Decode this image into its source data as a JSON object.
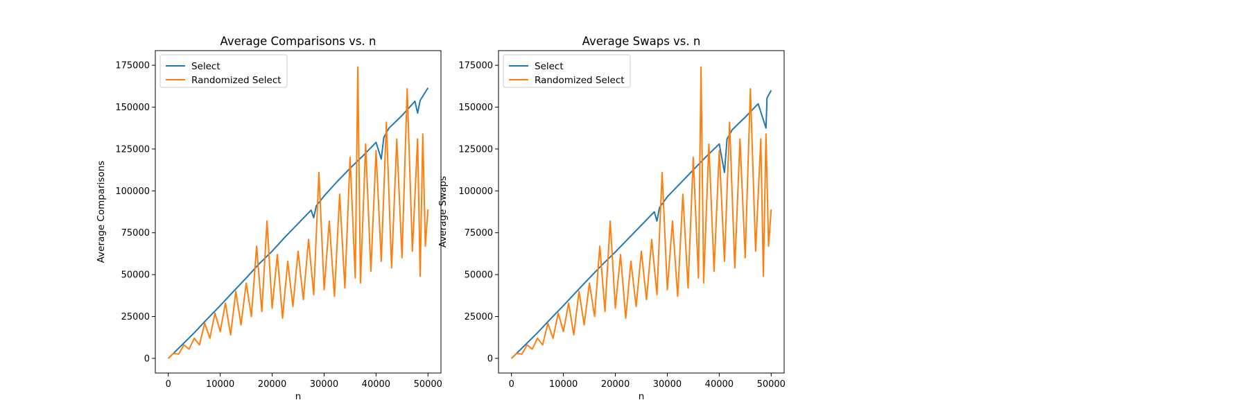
{
  "chart_data": [
    {
      "type": "line",
      "title": "Average Comparisons vs. n",
      "xlabel": "n",
      "ylabel": "Average Comparisons",
      "xlim": [
        -2500,
        52500
      ],
      "ylim": [
        -8750,
        183750
      ],
      "xticks": [
        0,
        10000,
        20000,
        30000,
        40000,
        50000
      ],
      "yticks": [
        0,
        25000,
        50000,
        75000,
        100000,
        125000,
        150000,
        175000
      ],
      "legend": "upper-left",
      "series": [
        {
          "name": "Select",
          "color": "#1f77b4",
          "points": [
            [
              0,
              0
            ],
            [
              2500,
              7600
            ],
            [
              5000,
              15300
            ],
            [
              7500,
              23500
            ],
            [
              10000,
              31500
            ],
            [
              12500,
              39800
            ],
            [
              15000,
              48000
            ],
            [
              17500,
              56500
            ],
            [
              20000,
              64000
            ],
            [
              22500,
              72500
            ],
            [
              25000,
              80500
            ],
            [
              27500,
              88500
            ],
            [
              28000,
              84000
            ],
            [
              28500,
              91000
            ],
            [
              30000,
              97000
            ],
            [
              32500,
              105500
            ],
            [
              35000,
              113500
            ],
            [
              37500,
              121000
            ],
            [
              40000,
              129000
            ],
            [
              41000,
              119000
            ],
            [
              41500,
              132000
            ],
            [
              42500,
              137500
            ],
            [
              45000,
              145000
            ],
            [
              47500,
              153500
            ],
            [
              48000,
              146500
            ],
            [
              48500,
              154000
            ],
            [
              50000,
              161500
            ]
          ]
        },
        {
          "name": "Randomized Select",
          "color": "#ff7f0e",
          "points": [
            [
              0,
              0
            ],
            [
              1000,
              3000
            ],
            [
              2000,
              2500
            ],
            [
              3000,
              8000
            ],
            [
              4000,
              5500
            ],
            [
              5000,
              12000
            ],
            [
              6000,
              8000
            ],
            [
              7000,
              21000
            ],
            [
              8000,
              12000
            ],
            [
              9000,
              27000
            ],
            [
              10000,
              16000
            ],
            [
              11000,
              33000
            ],
            [
              12000,
              14000
            ],
            [
              13000,
              40000
            ],
            [
              14000,
              20000
            ],
            [
              15000,
              45000
            ],
            [
              16000,
              25000
            ],
            [
              17000,
              67000
            ],
            [
              18000,
              28000
            ],
            [
              19000,
              82000
            ],
            [
              20000,
              30000
            ],
            [
              21000,
              62000
            ],
            [
              22000,
              24000
            ],
            [
              23000,
              58000
            ],
            [
              24000,
              31000
            ],
            [
              25000,
              64000
            ],
            [
              26000,
              35000
            ],
            [
              27000,
              71000
            ],
            [
              28000,
              38000
            ],
            [
              29000,
              111000
            ],
            [
              30000,
              41000
            ],
            [
              31000,
              82000
            ],
            [
              32000,
              37000
            ],
            [
              33000,
              98000
            ],
            [
              34000,
              42000
            ],
            [
              35000,
              120000
            ],
            [
              36000,
              48000
            ],
            [
              36500,
              174000
            ],
            [
              37000,
              45000
            ],
            [
              38000,
              128000
            ],
            [
              39000,
              52000
            ],
            [
              40000,
              124000
            ],
            [
              41000,
              58000
            ],
            [
              42000,
              141000
            ],
            [
              43000,
              54000
            ],
            [
              44000,
              131000
            ],
            [
              45000,
              60000
            ],
            [
              46000,
              161000
            ],
            [
              47000,
              64000
            ],
            [
              48000,
              131000
            ],
            [
              48500,
              49000
            ],
            [
              49000,
              134000
            ],
            [
              49500,
              67000
            ],
            [
              50000,
              89000
            ]
          ]
        }
      ]
    },
    {
      "type": "line",
      "title": "Average Swaps vs. n",
      "xlabel": "n",
      "ylabel": "Average Swaps",
      "xlim": [
        -2500,
        52500
      ],
      "ylim": [
        -8750,
        183750
      ],
      "xticks": [
        0,
        10000,
        20000,
        30000,
        40000,
        50000
      ],
      "yticks": [
        0,
        25000,
        50000,
        75000,
        100000,
        125000,
        150000,
        175000
      ],
      "legend": "upper-left",
      "series": [
        {
          "name": "Select",
          "color": "#1f77b4",
          "points": [
            [
              0,
              0
            ],
            [
              2500,
              7600
            ],
            [
              5000,
              15300
            ],
            [
              7500,
              23500
            ],
            [
              10000,
              31500
            ],
            [
              12500,
              39800
            ],
            [
              15000,
              48000
            ],
            [
              17500,
              56000
            ],
            [
              20000,
              63500
            ],
            [
              22500,
              71500
            ],
            [
              25000,
              79500
            ],
            [
              27500,
              87500
            ],
            [
              28000,
              82000
            ],
            [
              28500,
              90000
            ],
            [
              30000,
              96500
            ],
            [
              32500,
              104500
            ],
            [
              35000,
              112500
            ],
            [
              37500,
              120500
            ],
            [
              40000,
              128000
            ],
            [
              41000,
              111000
            ],
            [
              41500,
              131000
            ],
            [
              42500,
              136500
            ],
            [
              45000,
              144000
            ],
            [
              47500,
              152000
            ],
            [
              49000,
              137500
            ],
            [
              49200,
              155500
            ],
            [
              50000,
              160000
            ]
          ]
        },
        {
          "name": "Randomized Select",
          "color": "#ff7f0e",
          "points": [
            [
              0,
              0
            ],
            [
              1000,
              3000
            ],
            [
              2000,
              2500
            ],
            [
              3000,
              8000
            ],
            [
              4000,
              5500
            ],
            [
              5000,
              12000
            ],
            [
              6000,
              8000
            ],
            [
              7000,
              21000
            ],
            [
              8000,
              12000
            ],
            [
              9000,
              27000
            ],
            [
              10000,
              16000
            ],
            [
              11000,
              33000
            ],
            [
              12000,
              14000
            ],
            [
              13000,
              40000
            ],
            [
              14000,
              20000
            ],
            [
              15000,
              45000
            ],
            [
              16000,
              25000
            ],
            [
              17000,
              67000
            ],
            [
              18000,
              28000
            ],
            [
              19000,
              82000
            ],
            [
              20000,
              30000
            ],
            [
              21000,
              62000
            ],
            [
              22000,
              24000
            ],
            [
              23000,
              58000
            ],
            [
              24000,
              31000
            ],
            [
              25000,
              64000
            ],
            [
              26000,
              35000
            ],
            [
              27000,
              71000
            ],
            [
              28000,
              38000
            ],
            [
              29000,
              111000
            ],
            [
              30000,
              41000
            ],
            [
              31000,
              82000
            ],
            [
              32000,
              37000
            ],
            [
              33000,
              98000
            ],
            [
              34000,
              42000
            ],
            [
              35000,
              120000
            ],
            [
              36000,
              48000
            ],
            [
              36500,
              174000
            ],
            [
              37000,
              45000
            ],
            [
              38000,
              128000
            ],
            [
              39000,
              52000
            ],
            [
              40000,
              124000
            ],
            [
              41000,
              58000
            ],
            [
              42000,
              141000
            ],
            [
              43000,
              54000
            ],
            [
              44000,
              131000
            ],
            [
              45000,
              60000
            ],
            [
              46000,
              161000
            ],
            [
              47000,
              64000
            ],
            [
              48000,
              131000
            ],
            [
              48500,
              49000
            ],
            [
              49000,
              134000
            ],
            [
              49500,
              67000
            ],
            [
              50000,
              89000
            ]
          ]
        }
      ]
    }
  ]
}
